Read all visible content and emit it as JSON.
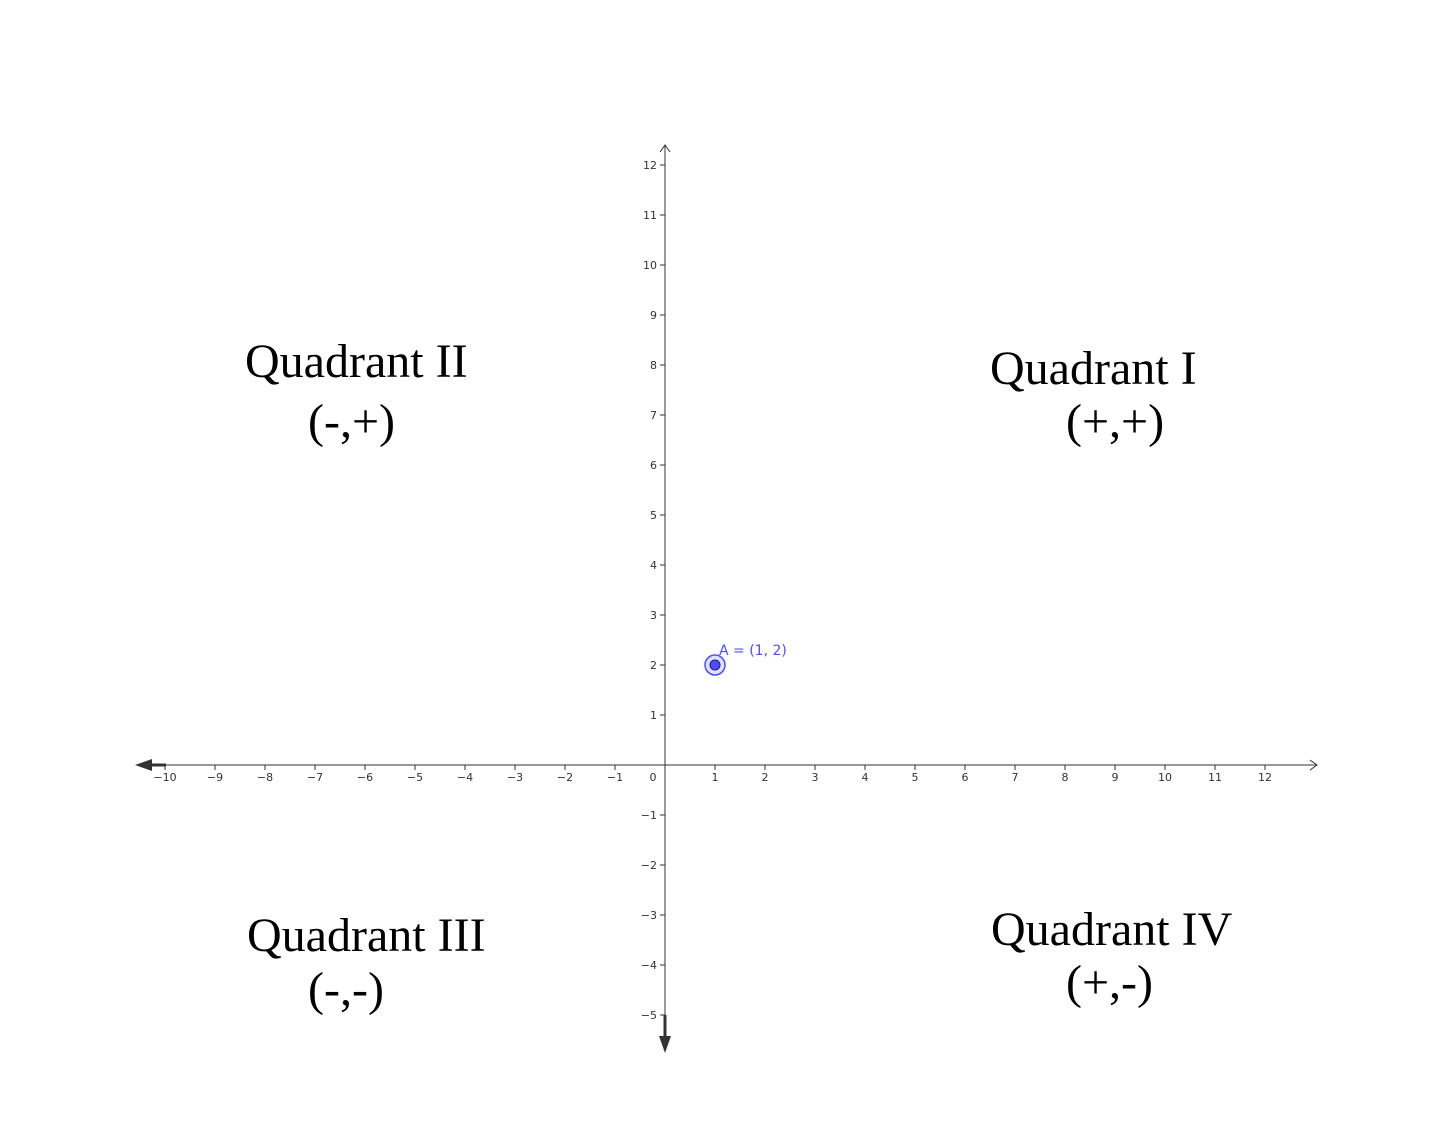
{
  "axes": {
    "x_min": -10,
    "x_max": 12,
    "y_min": -5,
    "y_max": 12,
    "x_tick_labels": [
      "−10",
      "−9",
      "−8",
      "−7",
      "−6",
      "−5",
      "−4",
      "−3",
      "−2",
      "−1",
      "1",
      "2",
      "3",
      "4",
      "5",
      "6",
      "7",
      "8",
      "9",
      "10",
      "11",
      "12"
    ],
    "y_tick_labels": [
      "−5",
      "−4",
      "−3",
      "−2",
      "−1",
      "1",
      "2",
      "3",
      "4",
      "5",
      "6",
      "7",
      "8",
      "9",
      "10",
      "11",
      "12"
    ],
    "origin_label": "0",
    "axis_color": "#333333"
  },
  "point": {
    "x": 1,
    "y": 2,
    "label": "A = (1, 2)",
    "color": "#4d4dff"
  },
  "quadrants": {
    "q1": {
      "title": "Quadrant I",
      "signs": "(+,+)"
    },
    "q2": {
      "title": "Quadrant II",
      "signs": "(-,+)"
    },
    "q3": {
      "title": "Quadrant III",
      "signs": "(-,-)"
    },
    "q4": {
      "title": "Quadrant IV",
      "signs": "(+,-)"
    }
  }
}
